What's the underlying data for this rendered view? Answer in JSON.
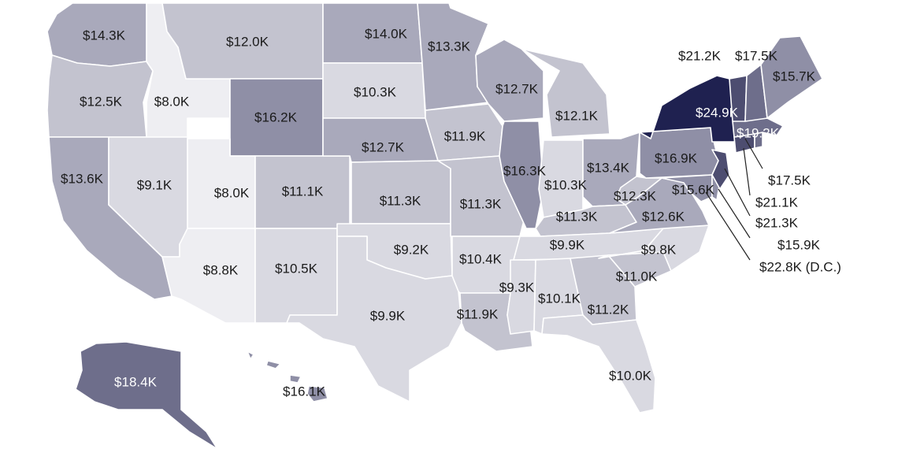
{
  "map": {
    "colors": {
      "scale": [
        "#eeeef2",
        "#d9d9e1",
        "#c3c3cf",
        "#a9a9bb",
        "#8f8fa6",
        "#6e6e8b",
        "#4d4d70",
        "#1f2150"
      ]
    },
    "states": [
      {
        "id": "WA",
        "value": 14.3,
        "label": "$14.3K"
      },
      {
        "id": "OR",
        "value": 12.5,
        "label": "$12.5K"
      },
      {
        "id": "CA",
        "value": 13.6,
        "label": "$13.6K"
      },
      {
        "id": "ID",
        "value": 8.0,
        "label": "$8.0K"
      },
      {
        "id": "NV",
        "value": 9.1,
        "label": "$9.1K"
      },
      {
        "id": "MT",
        "value": 12.0,
        "label": "$12.0K"
      },
      {
        "id": "WY",
        "value": 16.2,
        "label": "$16.2K"
      },
      {
        "id": "UT",
        "value": 8.0,
        "label": "$8.0K"
      },
      {
        "id": "AZ",
        "value": 8.8,
        "label": "$8.8K"
      },
      {
        "id": "CO",
        "value": 11.1,
        "label": "$11.1K"
      },
      {
        "id": "NM",
        "value": 10.5,
        "label": "$10.5K"
      },
      {
        "id": "ND",
        "value": 14.0,
        "label": "$14.0K"
      },
      {
        "id": "SD",
        "value": 10.3,
        "label": "$10.3K"
      },
      {
        "id": "NE",
        "value": 12.7,
        "label": "$12.7K"
      },
      {
        "id": "KS",
        "value": 11.3,
        "label": "$11.3K"
      },
      {
        "id": "OK",
        "value": 9.2,
        "label": "$9.2K"
      },
      {
        "id": "TX",
        "value": 9.9,
        "label": "$9.9K"
      },
      {
        "id": "MN",
        "value": 13.3,
        "label": "$13.3K"
      },
      {
        "id": "IA",
        "value": 11.9,
        "label": "$11.9K"
      },
      {
        "id": "MO",
        "value": 11.3,
        "label": "$11.3K"
      },
      {
        "id": "AR",
        "value": 10.4,
        "label": "$10.4K"
      },
      {
        "id": "LA",
        "value": 11.9,
        "label": "$11.9K"
      },
      {
        "id": "WI",
        "value": 12.7,
        "label": "$12.7K"
      },
      {
        "id": "IL",
        "value": 16.3,
        "label": "$16.3K"
      },
      {
        "id": "MI",
        "value": 12.1,
        "label": "$12.1K"
      },
      {
        "id": "IN",
        "value": 10.3,
        "label": "$10.3K"
      },
      {
        "id": "OH",
        "value": 13.4,
        "label": "$13.4K"
      },
      {
        "id": "KY",
        "value": 11.3,
        "label": "$11.3K"
      },
      {
        "id": "TN",
        "value": 9.9,
        "label": "$9.9K"
      },
      {
        "id": "MS",
        "value": 9.3,
        "label": "$9.3K"
      },
      {
        "id": "AL",
        "value": 10.1,
        "label": "$10.1K"
      },
      {
        "id": "GA",
        "value": 11.2,
        "label": "$11.2K"
      },
      {
        "id": "FL",
        "value": 10.0,
        "label": "$10.0K"
      },
      {
        "id": "SC",
        "value": 11.0,
        "label": "$11.0K"
      },
      {
        "id": "NC",
        "value": 9.8,
        "label": "$9.8K"
      },
      {
        "id": "VA",
        "value": 12.6,
        "label": "$12.6K"
      },
      {
        "id": "WV",
        "value": 12.3,
        "label": "$12.3K"
      },
      {
        "id": "PA",
        "value": 16.9,
        "label": "$16.9K"
      },
      {
        "id": "NY",
        "value": 24.9,
        "label": "$24.9K"
      },
      {
        "id": "MD",
        "value": 15.6,
        "label": "$15.6K"
      },
      {
        "id": "DE",
        "value": 15.9,
        "label": "$15.9K"
      },
      {
        "id": "NJ",
        "value": 21.3,
        "label": "$21.3K"
      },
      {
        "id": "CT",
        "value": 21.1,
        "label": "$21.1K"
      },
      {
        "id": "RI",
        "value": 17.5,
        "label": "$17.5K"
      },
      {
        "id": "MA",
        "value": 19.2,
        "label": "$19.2K"
      },
      {
        "id": "VT",
        "value": 21.2,
        "label": "$21.2K"
      },
      {
        "id": "NH",
        "value": 17.5,
        "label": "$17.5K"
      },
      {
        "id": "ME",
        "value": 15.7,
        "label": "$15.7K"
      },
      {
        "id": "DC",
        "value": 22.8,
        "label": "$22.8K (D.C.)"
      },
      {
        "id": "AK",
        "value": 18.4,
        "label": "$18.4K"
      },
      {
        "id": "HI",
        "value": 16.1,
        "label": "$16.1K"
      }
    ]
  }
}
